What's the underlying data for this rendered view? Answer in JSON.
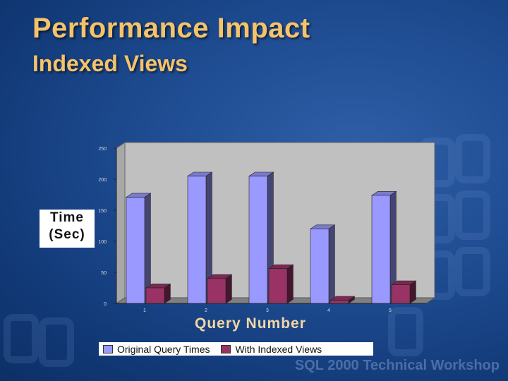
{
  "slide": {
    "title": "Performance Impact",
    "subtitle": "Indexed Views",
    "footer": "SQL 2000 Technical Workshop"
  },
  "colors": {
    "title": "#f5c36a",
    "original": "#9999ff",
    "indexed": "#993366",
    "plot_wall": "#c0c0c0",
    "plot_floor": "#808080"
  },
  "chart_data": {
    "type": "bar",
    "title": "",
    "xlabel": "Query Number",
    "ylabel": "Time (Sec)",
    "ylabel_lines": [
      "Time",
      "(Sec)"
    ],
    "categories": [
      "1",
      "2",
      "3",
      "4",
      "5"
    ],
    "series": [
      {
        "name": "Original Query Times",
        "color": "#9999ff",
        "values": [
          171,
          205,
          205,
          120,
          174
        ]
      },
      {
        "name": "With Indexed Views",
        "color": "#993366",
        "values": [
          25,
          40,
          56,
          5,
          30
        ]
      }
    ],
    "yticks": [
      0,
      50,
      100,
      150,
      200,
      250
    ],
    "ylim": [
      0,
      250
    ],
    "grid": false,
    "legend": "bottom",
    "three_d": true
  }
}
